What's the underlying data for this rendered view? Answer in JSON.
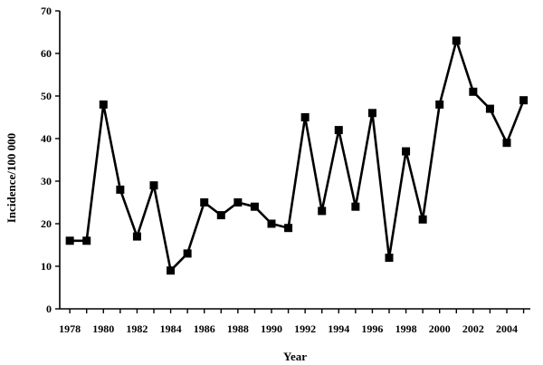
{
  "chart_data": {
    "type": "line",
    "title": "",
    "xlabel": "Year",
    "ylabel": "Incidence/100 000",
    "xlim": [
      1977.4,
      2005.4
    ],
    "ylim": [
      0,
      70
    ],
    "grid": false,
    "legend": "none",
    "x_ticks": [
      1978,
      1980,
      1982,
      1984,
      1986,
      1988,
      1990,
      1992,
      1994,
      1996,
      1998,
      2000,
      2002,
      2004
    ],
    "y_ticks": [
      0,
      10,
      20,
      30,
      40,
      50,
      60,
      70
    ],
    "x_tick_labels": [
      "1978",
      "1980",
      "1982",
      "1984",
      "1986",
      "1988",
      "1990",
      "1992",
      "1994",
      "1996",
      "1998",
      "2000",
      "2002",
      "2004"
    ],
    "y_tick_labels": [
      "0",
      "10",
      "20",
      "30",
      "40",
      "50",
      "60",
      "70"
    ],
    "series": [
      {
        "marker": "square",
        "color": "#000000",
        "x": [
          1978,
          1979,
          1980,
          1981,
          1982,
          1983,
          1984,
          1985,
          1986,
          1987,
          1988,
          1989,
          1990,
          1991,
          1992,
          1993,
          1994,
          1995,
          1996,
          1997,
          1998,
          1999,
          2000,
          2001,
          2002,
          2003,
          2004,
          2005
        ],
        "values": [
          16,
          16,
          48,
          28,
          17,
          29,
          9,
          13,
          25,
          22,
          25,
          24,
          20,
          19,
          45,
          23,
          42,
          24,
          46,
          12,
          37,
          21,
          48,
          63,
          51,
          47,
          39,
          49
        ]
      }
    ]
  }
}
